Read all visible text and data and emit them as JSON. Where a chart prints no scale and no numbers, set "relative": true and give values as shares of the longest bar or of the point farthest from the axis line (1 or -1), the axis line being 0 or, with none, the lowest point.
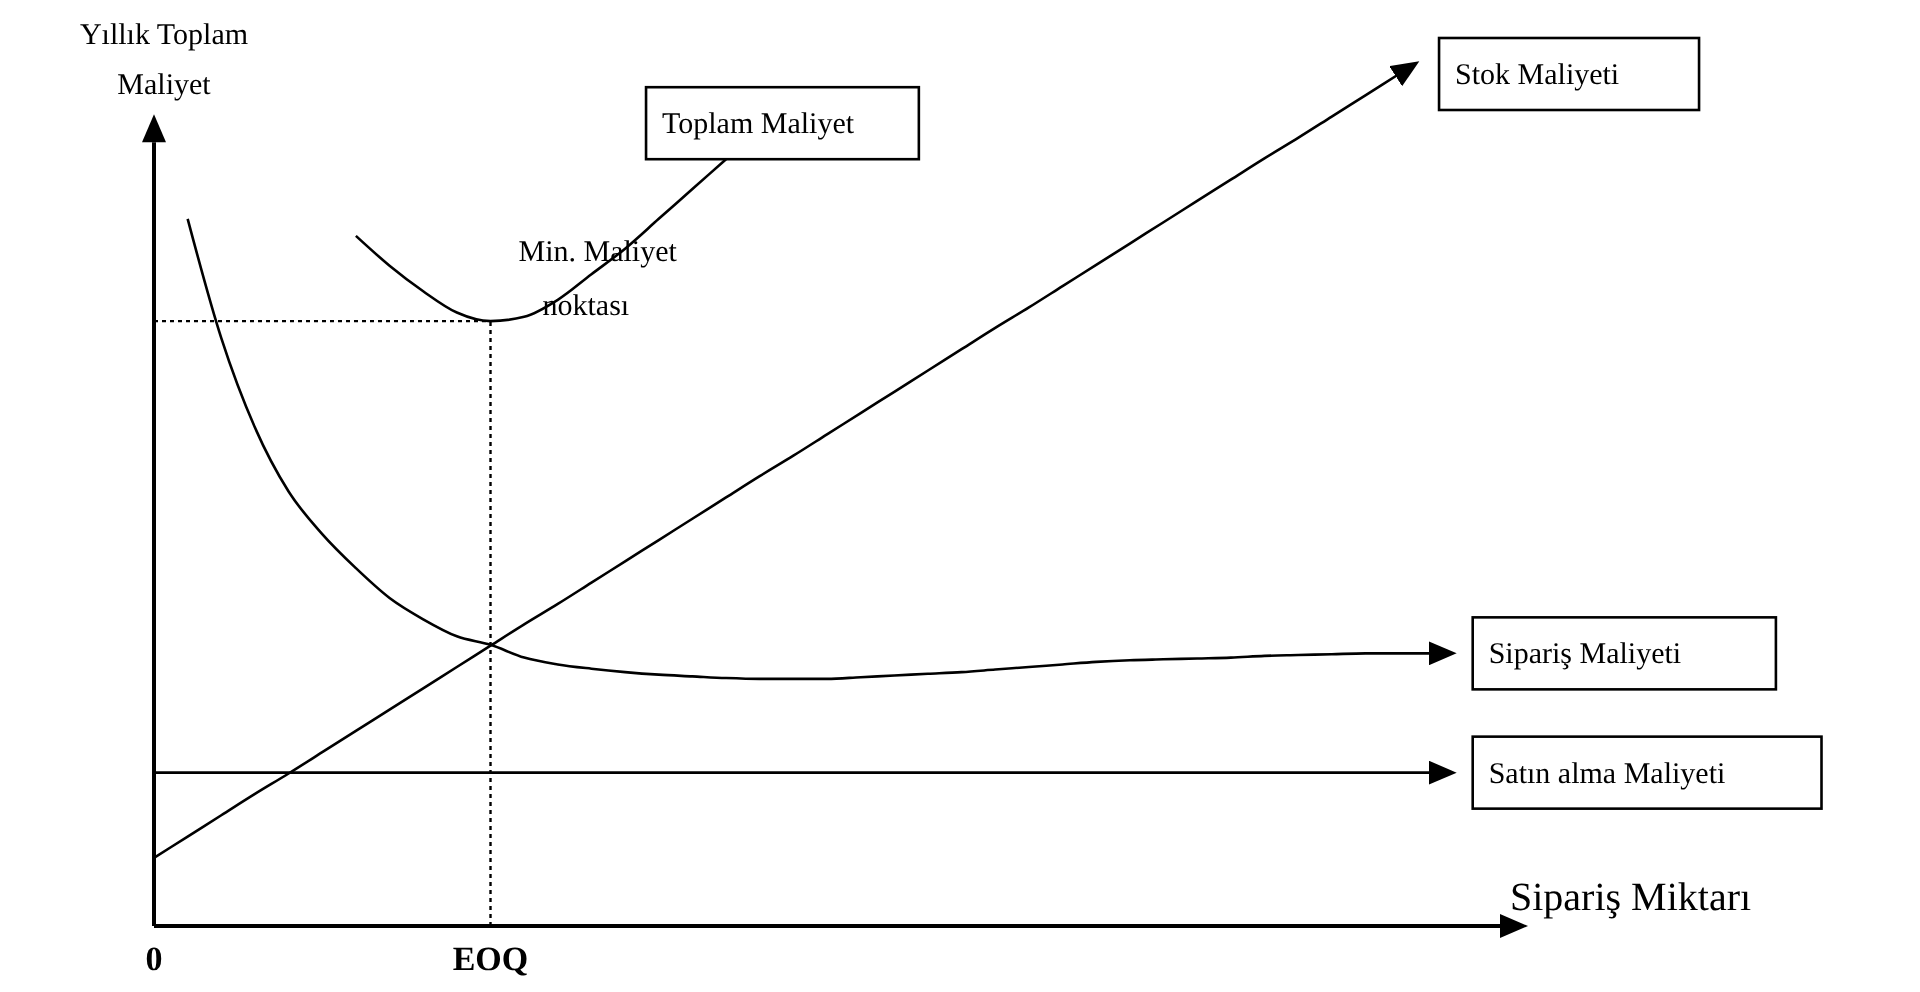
{
  "chart_data": {
    "type": "line",
    "relative": true,
    "xlabel": "Sipariş Miktarı",
    "ylabel": "Yıllık Toplam Maliyet",
    "categories": [
      "0",
      null,
      null,
      null,
      null,
      null,
      null,
      null,
      null,
      null,
      "EOQ",
      null,
      null,
      null,
      null,
      null,
      null,
      null,
      null,
      null,
      null,
      null,
      null,
      null,
      null,
      null,
      null,
      null,
      null,
      null,
      null,
      null,
      null,
      null,
      null,
      null,
      null,
      null,
      null,
      null,
      null
    ],
    "series": [
      {
        "name": "Toplam Maliyet",
        "color": "#000000",
        "values": [
          null,
          null,
          null,
          null,
          null,
          null,
          0.81,
          0.775,
          0.745,
          0.72,
          0.71,
          0.715,
          0.735,
          0.765,
          0.795,
          0.83,
          0.865,
          0.9,
          null,
          null,
          null,
          null,
          null,
          null,
          null,
          null,
          null,
          null,
          null,
          null,
          null,
          null,
          null,
          null,
          null,
          null,
          null,
          null,
          null,
          null,
          null
        ]
      },
      {
        "name": "Stok Maliyeti",
        "color": "#000000",
        "values": [
          0.08,
          0.105,
          0.13,
          0.155,
          0.179,
          0.204,
          0.229,
          0.254,
          0.279,
          0.304,
          0.329,
          0.354,
          0.378,
          0.403,
          0.428,
          0.453,
          0.478,
          0.503,
          0.528,
          0.552,
          0.577,
          0.602,
          0.627,
          0.652,
          0.677,
          0.702,
          0.726,
          0.751,
          0.776,
          0.801,
          0.826,
          0.851,
          0.876,
          0.901,
          0.925,
          0.95,
          0.975,
          1.0,
          null,
          null,
          null
        ]
      },
      {
        "name": "Sipariş Maliyeti",
        "color": "#000000",
        "values": [
          null,
          0.83,
          0.69,
          0.585,
          0.51,
          0.46,
          0.42,
          0.385,
          0.36,
          0.34,
          0.33,
          0.315,
          0.307,
          0.302,
          0.298,
          0.295,
          0.293,
          0.291,
          0.29,
          0.29,
          0.29,
          0.292,
          0.294,
          0.296,
          0.298,
          0.301,
          0.304,
          0.307,
          0.31,
          0.312,
          0.313,
          0.314,
          0.315,
          0.317,
          0.318,
          0.319,
          0.32,
          0.32,
          0.32,
          null,
          null
        ]
      },
      {
        "name": "Satın alma Maliyeti",
        "color": "#000000",
        "values": [
          0.18,
          0.18,
          0.18,
          0.18,
          0.18,
          0.18,
          0.18,
          0.18,
          0.18,
          0.18,
          0.18,
          0.18,
          0.18,
          0.18,
          0.18,
          0.18,
          0.18,
          0.18,
          0.18,
          0.18,
          0.18,
          0.18,
          0.18,
          0.18,
          0.18,
          0.18,
          0.18,
          0.18,
          0.18,
          0.18,
          0.18,
          0.18,
          0.18,
          0.18,
          0.18,
          0.18,
          0.18,
          0.18,
          0.18,
          null,
          null
        ]
      }
    ],
    "ref_lines": [
      {
        "axis": "x",
        "value": "EOQ",
        "line_style": "dotted"
      },
      {
        "axis": "y",
        "value": 0.71,
        "line_style": "dotted"
      }
    ],
    "annotations": [
      {
        "text": "Min. Maliyet noktası",
        "x": "EOQ",
        "y": 0.71
      }
    ]
  }
}
